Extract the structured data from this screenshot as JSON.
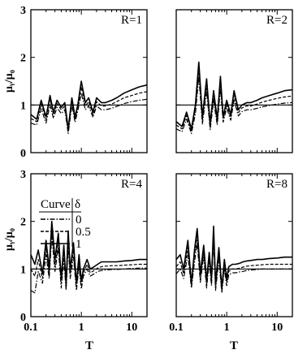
{
  "figure": {
    "y_axis_label": "μᵧ/μ₀",
    "x_axis_label": "T"
  },
  "legend": {
    "header_curve": "Curve",
    "header_delta": "δ",
    "entries": [
      {
        "label": "0",
        "style": "dash-dot"
      },
      {
        "label": "0.5",
        "style": "dashed"
      },
      {
        "label": "1",
        "style": "solid"
      }
    ]
  },
  "chart_data": [
    {
      "type": "line",
      "panel_label": "R=1",
      "xscale": "log",
      "xlim": [
        0.1,
        20
      ],
      "ylim": [
        0,
        3
      ],
      "yticks": [
        0,
        1,
        2,
        3
      ],
      "xticks": [
        0.1,
        1,
        10
      ],
      "reference_line": 1,
      "series": [
        {
          "style": "solid",
          "x": [
            0.1,
            0.13,
            0.16,
            0.2,
            0.24,
            0.28,
            0.33,
            0.4,
            0.47,
            0.55,
            0.65,
            0.75,
            0.85,
            1.0,
            1.2,
            1.4,
            1.7,
            2.0,
            2.5,
            3.0,
            4.0,
            5.0,
            7.0,
            10.0,
            14.0,
            20.0
          ],
          "y": [
            0.8,
            0.7,
            1.1,
            0.75,
            1.2,
            0.85,
            1.1,
            0.95,
            1.05,
            0.5,
            1.15,
            0.75,
            1.0,
            1.5,
            1.05,
            1.15,
            0.85,
            1.15,
            1.05,
            1.05,
            1.1,
            1.15,
            1.25,
            1.32,
            1.38,
            1.42
          ]
        },
        {
          "style": "dashed",
          "x": [
            0.1,
            0.13,
            0.16,
            0.2,
            0.24,
            0.28,
            0.33,
            0.4,
            0.47,
            0.55,
            0.65,
            0.75,
            0.85,
            1.0,
            1.2,
            1.4,
            1.7,
            2.0,
            2.5,
            3.0,
            4.0,
            5.0,
            7.0,
            10.0,
            14.0,
            20.0
          ],
          "y": [
            0.72,
            0.65,
            1.02,
            0.7,
            1.12,
            0.8,
            1.03,
            0.9,
            0.98,
            0.45,
            1.08,
            0.7,
            0.95,
            1.38,
            0.98,
            1.07,
            0.8,
            1.07,
            0.98,
            0.98,
            1.02,
            1.07,
            1.15,
            1.2,
            1.25,
            1.28
          ]
        },
        {
          "style": "dash-dot",
          "x": [
            0.1,
            0.13,
            0.16,
            0.2,
            0.24,
            0.28,
            0.33,
            0.4,
            0.47,
            0.55,
            0.65,
            0.75,
            0.85,
            1.0,
            1.2,
            1.4,
            1.7,
            2.0,
            2.5,
            3.0,
            4.0,
            5.0,
            7.0,
            10.0,
            14.0,
            20.0
          ],
          "y": [
            0.62,
            0.58,
            0.92,
            0.62,
            1.0,
            0.72,
            0.95,
            0.82,
            0.9,
            0.4,
            1.0,
            0.64,
            0.88,
            1.25,
            0.9,
            0.98,
            0.74,
            0.98,
            0.9,
            0.9,
            0.93,
            0.97,
            1.03,
            1.07,
            1.1,
            1.12
          ]
        }
      ]
    },
    {
      "type": "line",
      "panel_label": "R=2",
      "xscale": "log",
      "xlim": [
        0.1,
        20
      ],
      "ylim": [
        0,
        3
      ],
      "yticks": [
        0,
        1,
        2,
        3
      ],
      "xticks": [
        0.1,
        1,
        10
      ],
      "reference_line": 1,
      "series": [
        {
          "style": "solid",
          "x": [
            0.1,
            0.13,
            0.16,
            0.2,
            0.24,
            0.28,
            0.33,
            0.4,
            0.47,
            0.55,
            0.65,
            0.75,
            0.85,
            1.0,
            1.2,
            1.4,
            1.7,
            2.0,
            2.5,
            3.0,
            4.0,
            5.0,
            7.0,
            10.0,
            14.0,
            20.0
          ],
          "y": [
            0.65,
            0.55,
            0.85,
            0.5,
            1.0,
            1.9,
            0.75,
            1.55,
            0.6,
            1.3,
            0.7,
            1.6,
            0.75,
            1.1,
            0.8,
            1.3,
            0.9,
            1.0,
            1.05,
            1.05,
            1.1,
            1.15,
            1.2,
            1.25,
            1.3,
            1.32
          ]
        },
        {
          "style": "dashed",
          "x": [
            0.1,
            0.13,
            0.16,
            0.2,
            0.24,
            0.28,
            0.33,
            0.4,
            0.47,
            0.55,
            0.65,
            0.75,
            0.85,
            1.0,
            1.2,
            1.4,
            1.7,
            2.0,
            2.5,
            3.0,
            4.0,
            5.0,
            7.0,
            10.0,
            14.0,
            20.0
          ],
          "y": [
            0.58,
            0.5,
            0.78,
            0.45,
            0.92,
            1.75,
            0.68,
            1.43,
            0.55,
            1.2,
            0.64,
            1.48,
            0.7,
            1.02,
            0.74,
            1.2,
            0.84,
            0.94,
            0.98,
            0.98,
            1.02,
            1.06,
            1.1,
            1.14,
            1.17,
            1.19
          ]
        },
        {
          "style": "dash-dot",
          "x": [
            0.1,
            0.13,
            0.16,
            0.2,
            0.24,
            0.28,
            0.33,
            0.4,
            0.47,
            0.55,
            0.65,
            0.75,
            0.85,
            1.0,
            1.2,
            1.4,
            1.7,
            2.0,
            2.5,
            3.0,
            4.0,
            5.0,
            7.0,
            10.0,
            14.0,
            20.0
          ],
          "y": [
            0.5,
            0.44,
            0.7,
            0.4,
            0.82,
            1.6,
            0.6,
            1.3,
            0.48,
            1.1,
            0.58,
            1.35,
            0.64,
            0.94,
            0.68,
            1.1,
            0.77,
            0.86,
            0.9,
            0.9,
            0.93,
            0.96,
            0.99,
            1.02,
            1.04,
            1.05
          ]
        }
      ]
    },
    {
      "type": "line",
      "panel_label": "R=4",
      "xscale": "log",
      "xlim": [
        0.1,
        20
      ],
      "ylim": [
        0,
        3
      ],
      "yticks": [
        0,
        1,
        2,
        3
      ],
      "xticks": [
        0.1,
        1,
        10
      ],
      "reference_line": 1,
      "series": [
        {
          "style": "solid",
          "x": [
            0.1,
            0.12,
            0.14,
            0.17,
            0.2,
            0.23,
            0.26,
            0.3,
            0.35,
            0.4,
            0.45,
            0.5,
            0.55,
            0.6,
            0.7,
            0.8,
            0.9,
            1.0,
            1.1,
            1.3,
            1.5,
            1.8,
            2.1,
            2.5,
            3.0,
            4.0,
            5.0,
            7.0,
            10.0,
            14.0,
            20.0
          ],
          "y": [
            1.3,
            1.1,
            1.4,
            0.9,
            1.6,
            1.0,
            2.0,
            1.2,
            1.75,
            0.8,
            1.5,
            0.7,
            1.8,
            1.0,
            1.55,
            0.7,
            1.3,
            0.75,
            1.0,
            1.2,
            1.0,
            1.05,
            1.1,
            1.15,
            1.15,
            1.15,
            1.15,
            1.17,
            1.18,
            1.2,
            1.2
          ]
        },
        {
          "style": "dashed",
          "x": [
            0.1,
            0.12,
            0.14,
            0.17,
            0.2,
            0.23,
            0.26,
            0.3,
            0.35,
            0.4,
            0.45,
            0.5,
            0.55,
            0.6,
            0.7,
            0.8,
            0.9,
            1.0,
            1.1,
            1.3,
            1.5,
            1.8,
            2.1,
            2.5,
            3.0,
            4.0,
            5.0,
            7.0,
            10.0,
            14.0,
            20.0
          ],
          "y": [
            1.0,
            0.85,
            1.2,
            0.8,
            1.45,
            0.9,
            1.85,
            1.05,
            1.6,
            0.7,
            1.35,
            0.6,
            1.65,
            0.9,
            1.4,
            0.62,
            1.15,
            0.66,
            0.92,
            1.1,
            0.92,
            0.97,
            1.02,
            1.05,
            1.06,
            1.07,
            1.07,
            1.08,
            1.09,
            1.1,
            1.1
          ]
        },
        {
          "style": "dash-dot",
          "x": [
            0.1,
            0.12,
            0.14,
            0.17,
            0.2,
            0.23,
            0.26,
            0.3,
            0.35,
            0.4,
            0.45,
            0.5,
            0.55,
            0.6,
            0.7,
            0.8,
            0.9,
            1.0,
            1.1,
            1.3,
            1.5,
            1.8,
            2.1,
            2.5,
            3.0,
            4.0,
            5.0,
            7.0,
            10.0,
            14.0,
            20.0
          ],
          "y": [
            0.55,
            0.5,
            0.95,
            0.7,
            1.3,
            0.8,
            1.7,
            0.95,
            1.45,
            0.6,
            1.2,
            0.55,
            1.5,
            0.8,
            1.25,
            0.55,
            1.05,
            0.58,
            0.85,
            1.0,
            0.85,
            0.9,
            0.95,
            0.97,
            0.98,
            0.99,
            0.99,
            1.0,
            1.01,
            1.02,
            1.02
          ]
        }
      ]
    },
    {
      "type": "line",
      "panel_label": "R=8",
      "xscale": "log",
      "xlim": [
        0.1,
        20
      ],
      "ylim": [
        0,
        3
      ],
      "yticks": [
        0,
        1,
        2,
        3
      ],
      "xticks": [
        0.1,
        1,
        10
      ],
      "reference_line": 1,
      "series": [
        {
          "style": "solid",
          "x": [
            0.1,
            0.12,
            0.14,
            0.17,
            0.2,
            0.23,
            0.26,
            0.3,
            0.35,
            0.4,
            0.45,
            0.5,
            0.55,
            0.6,
            0.7,
            0.8,
            0.9,
            1.0,
            1.1,
            1.3,
            1.5,
            1.8,
            2.1,
            2.5,
            3.0,
            4.0,
            5.0,
            7.0,
            10.0,
            14.0,
            20.0
          ],
          "y": [
            1.2,
            1.3,
            1.0,
            1.6,
            0.7,
            1.4,
            1.85,
            0.9,
            1.5,
            0.75,
            1.35,
            0.8,
            1.9,
            0.7,
            1.45,
            0.6,
            1.2,
            0.8,
            1.05,
            1.1,
            1.1,
            1.12,
            1.15,
            1.17,
            1.18,
            1.2,
            1.2,
            1.22,
            1.23,
            1.25,
            1.25
          ]
        },
        {
          "style": "dashed",
          "x": [
            0.1,
            0.12,
            0.14,
            0.17,
            0.2,
            0.23,
            0.26,
            0.3,
            0.35,
            0.4,
            0.45,
            0.5,
            0.55,
            0.6,
            0.7,
            0.8,
            0.9,
            1.0,
            1.1,
            1.3,
            1.5,
            1.8,
            2.1,
            2.5,
            3.0,
            4.0,
            5.0,
            7.0,
            10.0,
            14.0,
            20.0
          ],
          "y": [
            1.05,
            1.15,
            0.9,
            1.45,
            0.65,
            1.3,
            1.7,
            0.8,
            1.4,
            0.68,
            1.25,
            0.72,
            1.75,
            0.62,
            1.33,
            0.55,
            1.1,
            0.72,
            0.95,
            1.0,
            1.0,
            1.02,
            1.04,
            1.06,
            1.07,
            1.08,
            1.09,
            1.1,
            1.1,
            1.1,
            1.1
          ]
        },
        {
          "style": "dash-dot",
          "x": [
            0.1,
            0.12,
            0.14,
            0.17,
            0.2,
            0.23,
            0.26,
            0.3,
            0.35,
            0.4,
            0.45,
            0.5,
            0.55,
            0.6,
            0.7,
            0.8,
            0.9,
            1.0,
            1.1,
            1.3,
            1.5,
            1.8,
            2.1,
            2.5,
            3.0,
            4.0,
            5.0,
            7.0,
            10.0,
            14.0,
            20.0
          ],
          "y": [
            0.9,
            1.0,
            0.8,
            1.3,
            0.6,
            1.15,
            1.55,
            0.72,
            1.28,
            0.6,
            1.15,
            0.65,
            1.6,
            0.55,
            1.2,
            0.5,
            1.0,
            0.65,
            0.88,
            0.92,
            0.92,
            0.94,
            0.95,
            0.97,
            0.98,
            0.99,
            1.0,
            1.0,
            1.0,
            1.0,
            1.0
          ]
        }
      ]
    }
  ]
}
